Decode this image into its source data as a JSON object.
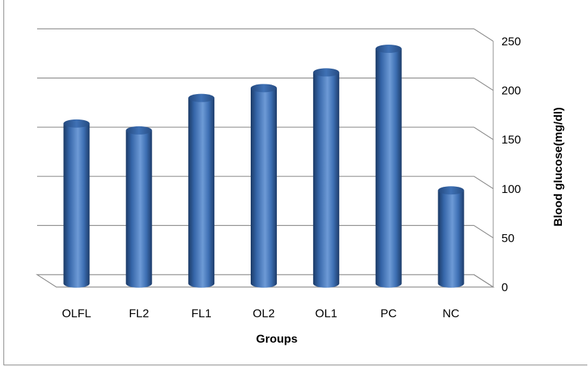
{
  "chart_data": {
    "type": "bar",
    "style": "3d-cylinder",
    "categories": [
      "OLFL",
      "FL2",
      "FL1",
      "OL2",
      "OL1",
      "PC",
      "NC"
    ],
    "values": [
      160,
      153,
      186,
      196,
      212,
      236,
      92
    ],
    "xlabel": "Groups",
    "ylabel": "Blood glucose(mg/dl)",
    "ylim": [
      0,
      250
    ],
    "yticks": [
      "0",
      "50",
      "100",
      "150",
      "200",
      "250"
    ],
    "y_axis_side": "right",
    "grid": true,
    "bar_color": "#4a7fc1"
  }
}
